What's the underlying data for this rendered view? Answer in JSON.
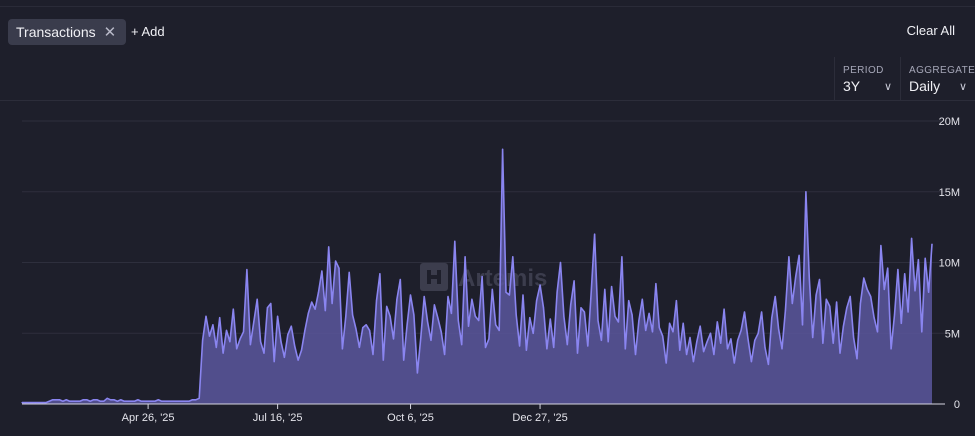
{
  "filters": {
    "chip_label": "Transactions",
    "chip_close": "✕",
    "add_label": "+ Add",
    "clear_label": "Clear All"
  },
  "controls": {
    "period": {
      "label": "PERIOD",
      "value": "3Y"
    },
    "aggregate": {
      "label": "AGGREGATE",
      "value": "Daily"
    }
  },
  "watermark": "Artemis",
  "colors": {
    "accent": "#8a85f0",
    "fill": "#5a579d",
    "background": "#1e1f2b"
  },
  "chart_data": {
    "type": "area",
    "title": "Transactions",
    "ylim": [
      0,
      20000000
    ],
    "yticks": [
      {
        "value": 20000000,
        "label": "20M"
      },
      {
        "value": 15000000,
        "label": "15M"
      },
      {
        "value": 10000000,
        "label": "10M"
      },
      {
        "value": 5000000,
        "label": "5M"
      },
      {
        "value": 0,
        "label": "0"
      }
    ],
    "xticks": [
      {
        "index": 37,
        "label": "Apr 26, '25"
      },
      {
        "index": 75,
        "label": "Jul 16, '25"
      },
      {
        "index": 114,
        "label": "Oct 6, '25"
      },
      {
        "index": 152,
        "label": "Dec 27, '25"
      }
    ],
    "series": [
      {
        "name": "Transactions",
        "values": [
          0.1,
          0.1,
          0.1,
          0.1,
          0.1,
          0.1,
          0.1,
          0.1,
          0.2,
          0.3,
          0.3,
          0.3,
          0.2,
          0.3,
          0.2,
          0.2,
          0.2,
          0.2,
          0.3,
          0.3,
          0.2,
          0.3,
          0.3,
          0.2,
          0.2,
          0.4,
          0.3,
          0.3,
          0.2,
          0.3,
          0.2,
          0.2,
          0.2,
          0.2,
          0.3,
          0.2,
          0.2,
          0.2,
          0.2,
          0.2,
          0.3,
          0.2,
          0.2,
          0.2,
          0.2,
          0.2,
          0.2,
          0.2,
          0.2,
          0.2,
          0.3,
          0.3,
          0.4,
          4.5,
          6.2,
          4.8,
          5.6,
          4.0,
          6.1,
          3.6,
          5.2,
          4.4,
          6.7,
          3.9,
          4.6,
          5.1,
          9.5,
          4.2,
          5.8,
          7.4,
          4.4,
          3.6,
          6.8,
          7.1,
          3.0,
          6.2,
          4.4,
          3.3,
          4.9,
          5.5,
          4.1,
          3.1,
          3.8,
          5.2,
          6.4,
          7.2,
          6.7,
          7.9,
          9.4,
          6.6,
          11.1,
          7.1,
          10.1,
          9.6,
          3.9,
          6.2,
          9.3,
          6.3,
          5.3,
          4.0,
          5.4,
          5.6,
          5.2,
          3.5,
          7.3,
          9.2,
          3.1,
          6.9,
          6.2,
          4.6,
          7.4,
          8.8,
          3.1,
          5.6,
          7.7,
          6.3,
          2.2,
          4.7,
          7.6,
          5.8,
          4.5,
          7.0,
          6.1,
          5.1,
          3.5,
          7.6,
          6.4,
          11.5,
          5.9,
          4.2,
          10.4,
          5.5,
          7.4,
          6.2,
          5.9,
          9.0,
          4.0,
          4.6,
          8.1,
          5.6,
          5.2,
          18.0,
          7.9,
          7.7,
          10.4,
          6.3,
          4.1,
          7.7,
          3.8,
          6.1,
          5.0,
          7.3,
          8.4,
          6.8,
          3.9,
          6.0,
          4.0,
          7.9,
          10.0,
          6.2,
          4.2,
          7.0,
          8.7,
          3.6,
          6.8,
          6.5,
          4.1,
          7.9,
          12.0,
          5.9,
          4.5,
          8.1,
          4.4,
          8.3,
          6.2,
          5.8,
          10.4,
          3.9,
          7.3,
          6.3,
          3.5,
          5.9,
          7.4,
          5.2,
          6.4,
          5.1,
          8.5,
          5.4,
          4.8,
          2.9,
          5.7,
          5.1,
          7.3,
          3.8,
          5.7,
          3.5,
          4.7,
          3.0,
          4.4,
          5.5,
          3.7,
          4.4,
          5.0,
          3.5,
          5.8,
          4.3,
          6.7,
          3.9,
          4.6,
          2.9,
          4.5,
          5.2,
          6.5,
          4.6,
          3.0,
          4.5,
          5.0,
          6.5,
          4.0,
          2.8,
          6.1,
          7.6,
          5.3,
          3.9,
          6.6,
          10.4,
          7.1,
          9.0,
          10.5,
          5.6,
          15.0,
          8.9,
          4.7,
          7.7,
          8.8,
          4.3,
          7.4,
          6.9,
          4.3,
          7.2,
          3.6,
          5.5,
          6.8,
          7.6,
          4.7,
          3.2,
          7.1,
          8.9,
          8.1,
          7.6,
          6.1,
          5.1,
          11.2,
          8.1,
          9.6,
          3.9,
          6.3,
          9.5,
          5.7,
          9.2,
          6.5,
          11.7,
          8.0,
          10.2,
          5.1,
          10.3,
          7.9,
          11.3
        ]
      }
    ]
  }
}
